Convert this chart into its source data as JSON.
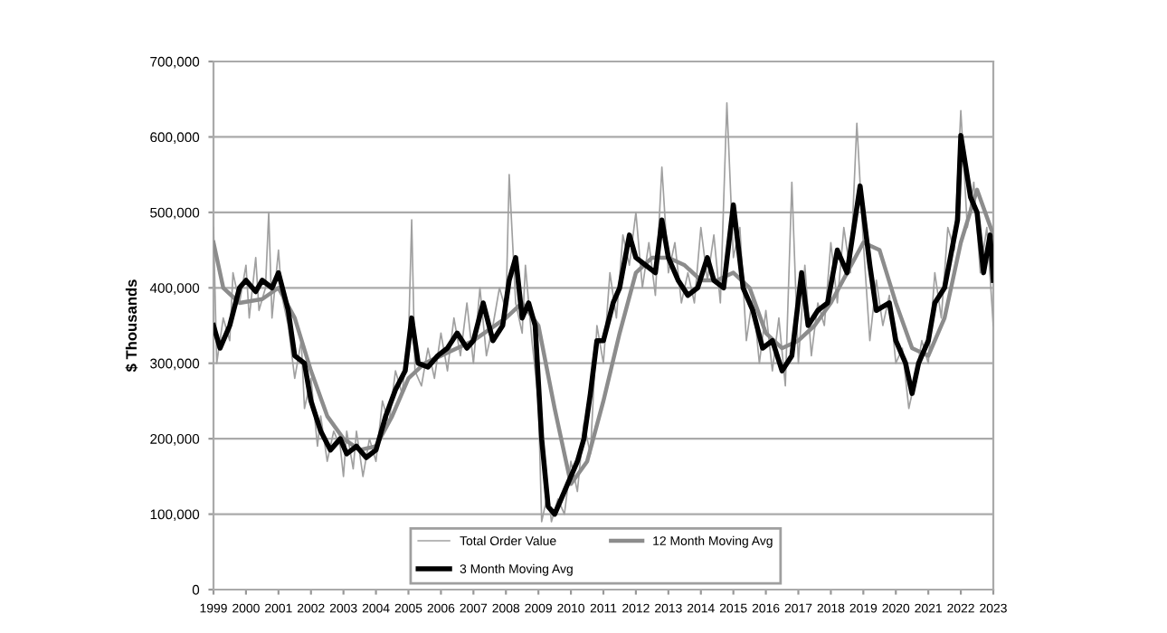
{
  "chart_data": {
    "type": "line",
    "ylabel": "$ Thousands",
    "xlim": [
      1999,
      2023
    ],
    "xticks": [
      1999,
      2000,
      2001,
      2002,
      2003,
      2004,
      2005,
      2006,
      2007,
      2008,
      2009,
      2010,
      2011,
      2012,
      2013,
      2014,
      2015,
      2016,
      2017,
      2018,
      2019,
      2020,
      2021,
      2022,
      2023
    ],
    "ylim": [
      0,
      700000
    ],
    "yticks": [
      0,
      {
        "value": 100000,
        "label": "100,000"
      },
      {
        "value": 200000,
        "label": "200,000"
      },
      {
        "value": 300000,
        "label": "300,000"
      },
      {
        "value": 400000,
        "label": "400,000"
      },
      {
        "value": 500000,
        "label": "500,000"
      },
      {
        "value": 600000,
        "label": "600,000"
      },
      {
        "value": 700000,
        "label": "700,000"
      }
    ],
    "grid": "y",
    "legend": "bottom",
    "series": [
      {
        "name": "Total Order Value",
        "color": "#a0a0a0",
        "x": [
          1999.0,
          1999.1,
          1999.3,
          1999.5,
          1999.6,
          1999.8,
          2000.0,
          2000.1,
          2000.3,
          2000.4,
          2000.6,
          2000.7,
          2000.8,
          2001.0,
          2001.1,
          2001.3,
          2001.5,
          2001.7,
          2001.8,
          2002.0,
          2002.2,
          2002.3,
          2002.5,
          2002.7,
          2002.9,
          2003.0,
          2003.1,
          2003.3,
          2003.4,
          2003.6,
          2003.8,
          2004.0,
          2004.2,
          2004.4,
          2004.6,
          2004.8,
          2005.0,
          2005.1,
          2005.2,
          2005.4,
          2005.6,
          2005.8,
          2006.0,
          2006.2,
          2006.4,
          2006.6,
          2006.8,
          2007.0,
          2007.2,
          2007.4,
          2007.6,
          2007.8,
          2008.0,
          2008.1,
          2008.3,
          2008.5,
          2008.6,
          2008.8,
          2009.0,
          2009.1,
          2009.3,
          2009.4,
          2009.6,
          2009.8,
          2010.0,
          2010.2,
          2010.4,
          2010.6,
          2010.8,
          2011.0,
          2011.2,
          2011.4,
          2011.6,
          2011.8,
          2012.0,
          2012.2,
          2012.4,
          2012.6,
          2012.8,
          2013.0,
          2013.2,
          2013.4,
          2013.6,
          2013.8,
          2014.0,
          2014.2,
          2014.4,
          2014.6,
          2014.8,
          2015.0,
          2015.2,
          2015.4,
          2015.6,
          2015.8,
          2016.0,
          2016.2,
          2016.4,
          2016.6,
          2016.8,
          2017.0,
          2017.2,
          2017.4,
          2017.6,
          2017.8,
          2018.0,
          2018.2,
          2018.4,
          2018.6,
          2018.8,
          2019.0,
          2019.2,
          2019.4,
          2019.6,
          2019.8,
          2020.0,
          2020.2,
          2020.4,
          2020.6,
          2020.8,
          2021.0,
          2021.2,
          2021.4,
          2021.6,
          2021.8,
          2022.0,
          2022.2,
          2022.4,
          2022.6,
          2022.8,
          2023.0
        ],
        "values": [
          480000,
          300000,
          360000,
          330000,
          420000,
          380000,
          430000,
          360000,
          440000,
          370000,
          400000,
          500000,
          360000,
          450000,
          390000,
          350000,
          280000,
          330000,
          240000,
          280000,
          190000,
          230000,
          170000,
          210000,
          190000,
          150000,
          210000,
          160000,
          210000,
          150000,
          200000,
          170000,
          250000,
          220000,
          290000,
          260000,
          330000,
          490000,
          290000,
          270000,
          320000,
          280000,
          340000,
          290000,
          360000,
          310000,
          380000,
          300000,
          400000,
          310000,
          350000,
          400000,
          370000,
          550000,
          380000,
          340000,
          430000,
          330000,
          250000,
          90000,
          130000,
          90000,
          120000,
          100000,
          170000,
          130000,
          220000,
          180000,
          350000,
          300000,
          420000,
          360000,
          470000,
          430000,
          500000,
          400000,
          460000,
          390000,
          560000,
          420000,
          460000,
          380000,
          420000,
          380000,
          480000,
          410000,
          470000,
          380000,
          645000,
          440000,
          480000,
          330000,
          390000,
          300000,
          370000,
          290000,
          360000,
          270000,
          540000,
          300000,
          430000,
          310000,
          380000,
          350000,
          460000,
          380000,
          480000,
          420000,
          618000,
          460000,
          330000,
          410000,
          350000,
          390000,
          300000,
          320000,
          240000,
          280000,
          330000,
          300000,
          420000,
          360000,
          480000,
          450000,
          635000,
          480000,
          540000,
          420000,
          480000,
          350000
        ]
      },
      {
        "name": "3 Month Moving Avg",
        "color": "#000000",
        "x": [
          1999.0,
          1999.2,
          1999.5,
          1999.8,
          2000.0,
          2000.3,
          2000.5,
          2000.8,
          2001.0,
          2001.3,
          2001.5,
          2001.8,
          2002.0,
          2002.3,
          2002.6,
          2002.9,
          2003.1,
          2003.4,
          2003.7,
          2004.0,
          2004.3,
          2004.6,
          2004.9,
          2005.1,
          2005.3,
          2005.6,
          2005.9,
          2006.2,
          2006.5,
          2006.8,
          2007.0,
          2007.3,
          2007.6,
          2007.9,
          2008.1,
          2008.3,
          2008.5,
          2008.7,
          2008.9,
          2009.1,
          2009.3,
          2009.5,
          2009.7,
          2009.9,
          2010.2,
          2010.4,
          2010.6,
          2010.8,
          2011.0,
          2011.3,
          2011.5,
          2011.8,
          2012.0,
          2012.3,
          2012.6,
          2012.8,
          2013.0,
          2013.3,
          2013.6,
          2013.9,
          2014.2,
          2014.4,
          2014.7,
          2015.0,
          2015.3,
          2015.6,
          2015.9,
          2016.2,
          2016.5,
          2016.8,
          2017.1,
          2017.3,
          2017.6,
          2017.9,
          2018.2,
          2018.5,
          2018.9,
          2019.2,
          2019.4,
          2019.8,
          2020.0,
          2020.3,
          2020.5,
          2020.7,
          2021.0,
          2021.2,
          2021.5,
          2021.9,
          2022.0,
          2022.3,
          2022.5,
          2022.7,
          2022.9,
          2023.0
        ],
        "values": [
          350000,
          320000,
          350000,
          400000,
          410000,
          395000,
          410000,
          400000,
          420000,
          370000,
          310000,
          300000,
          250000,
          210000,
          185000,
          200000,
          180000,
          190000,
          175000,
          185000,
          230000,
          265000,
          290000,
          360000,
          300000,
          295000,
          310000,
          320000,
          340000,
          320000,
          330000,
          380000,
          330000,
          350000,
          410000,
          440000,
          360000,
          380000,
          350000,
          200000,
          110000,
          100000,
          120000,
          140000,
          170000,
          200000,
          260000,
          330000,
          330000,
          380000,
          400000,
          470000,
          440000,
          430000,
          420000,
          490000,
          440000,
          410000,
          390000,
          400000,
          440000,
          410000,
          400000,
          510000,
          400000,
          370000,
          320000,
          330000,
          290000,
          310000,
          420000,
          350000,
          370000,
          380000,
          450000,
          420000,
          535000,
          430000,
          370000,
          380000,
          330000,
          300000,
          260000,
          300000,
          330000,
          380000,
          400000,
          490000,
          602000,
          520000,
          500000,
          420000,
          470000,
          410000
        ]
      },
      {
        "name": "12 Month Moving Avg",
        "color": "#8c8c8c",
        "x": [
          1999.0,
          1999.3,
          1999.8,
          2000.5,
          2001.0,
          2001.5,
          2002.0,
          2002.5,
          2003.0,
          2003.5,
          2004.0,
          2004.5,
          2005.0,
          2005.5,
          2006.0,
          2006.5,
          2007.0,
          2007.5,
          2008.0,
          2008.5,
          2009.0,
          2009.5,
          2010.0,
          2010.5,
          2011.0,
          2011.5,
          2012.0,
          2012.5,
          2013.0,
          2013.5,
          2014.0,
          2014.5,
          2015.0,
          2015.5,
          2016.0,
          2016.5,
          2017.0,
          2017.5,
          2018.0,
          2018.5,
          2019.0,
          2019.5,
          2020.0,
          2020.5,
          2021.0,
          2021.5,
          2022.0,
          2022.5,
          2023.0
        ],
        "values": [
          460000,
          400000,
          380000,
          385000,
          400000,
          360000,
          290000,
          230000,
          200000,
          185000,
          190000,
          230000,
          280000,
          300000,
          310000,
          320000,
          330000,
          345000,
          360000,
          380000,
          350000,
          240000,
          140000,
          170000,
          250000,
          340000,
          420000,
          440000,
          440000,
          430000,
          410000,
          410000,
          420000,
          400000,
          340000,
          320000,
          330000,
          350000,
          380000,
          420000,
          460000,
          450000,
          380000,
          320000,
          310000,
          360000,
          460000,
          530000,
          470000
        ]
      }
    ]
  }
}
